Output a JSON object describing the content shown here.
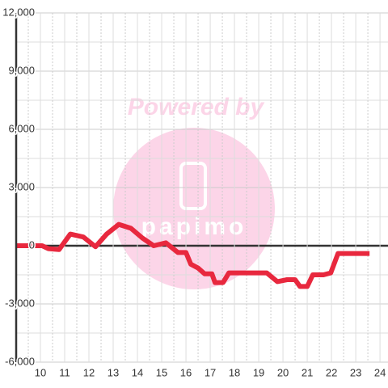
{
  "chart_data": {
    "type": "line",
    "watermark": {
      "text": "Powered by",
      "logo": "papimo"
    },
    "x": [
      9.0,
      10.07,
      10.33,
      10.77,
      11.23,
      11.77,
      12.27,
      12.73,
      13.23,
      13.73,
      14.2,
      14.67,
      15.17,
      15.67,
      16.0,
      16.2,
      16.5,
      16.77,
      17.07,
      17.2,
      17.53,
      17.77,
      19.33,
      19.77,
      20.17,
      20.5,
      20.7,
      21.0,
      21.23,
      21.67,
      21.97,
      22.27,
      23.57
    ],
    "series": [
      {
        "color": "#e8283e",
        "values": [
          0,
          0,
          -150,
          -200,
          600,
          450,
          -50,
          600,
          1100,
          900,
          400,
          0,
          150,
          -350,
          -350,
          -950,
          -1150,
          -1450,
          -1450,
          -1900,
          -1900,
          -1400,
          -1400,
          -1850,
          -1750,
          -1750,
          -2100,
          -2100,
          -1500,
          -1500,
          -1400,
          -400,
          -400
        ]
      }
    ],
    "xlim": [
      9,
      24.33
    ],
    "xticks": [
      10,
      11,
      12,
      13,
      14,
      15,
      16,
      17,
      18,
      19,
      20,
      21,
      22,
      23,
      24
    ],
    "ylim": [
      -6000,
      12000
    ],
    "yticks": [
      {
        "value": -6000,
        "label": "-6,000"
      },
      {
        "value": -3000,
        "label": "-3,000"
      },
      0,
      {
        "value": 3000,
        "label": "3,000"
      },
      {
        "value": 6000,
        "label": "6,000"
      },
      {
        "value": 9000,
        "label": "9,000"
      },
      {
        "value": 12000,
        "label": "12,000"
      }
    ],
    "grid": true
  }
}
